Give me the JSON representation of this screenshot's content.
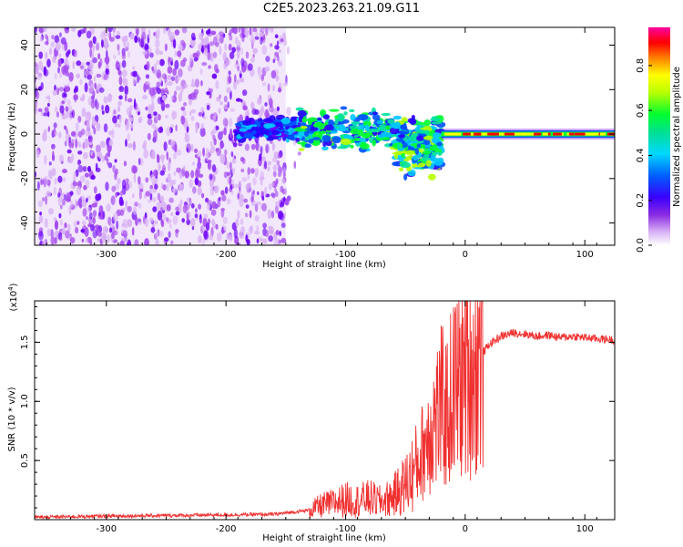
{
  "title": "C2E5.2023.263.21.09.G11",
  "colors": {
    "axis": "#000000",
    "snr_line": "#f03030",
    "colormap": [
      "#f1e4fb",
      "#d9b3f5",
      "#a64df0",
      "#6a00ff",
      "#2a00ff",
      "#0050ff",
      "#00c8ff",
      "#00e0a0",
      "#00ff30",
      "#b8ff00",
      "#ffff00",
      "#ff8000",
      "#ff0000",
      "#ff00a0"
    ]
  },
  "chart_data": [
    {
      "type": "heatmap",
      "xlabel": "Height of straight line (km)",
      "ylabel": "Frequency (Hz)",
      "xlim": [
        -360,
        125
      ],
      "ylim": [
        -50,
        48
      ],
      "x_ticks": [
        -300,
        -200,
        -100,
        0,
        100
      ],
      "y_ticks": [
        -40,
        -20,
        0,
        20,
        40
      ],
      "colorbar": {
        "label": "Normalized spectral amplitude",
        "range": [
          0.0,
          0.97
        ],
        "ticks": [
          0.0,
          0.2,
          0.4,
          0.6,
          0.8
        ],
        "tick_labels": [
          "0.0",
          "0.2",
          "0.4",
          "0.6",
          "0.8"
        ]
      },
      "regions": [
        {
          "x": [
            -360,
            -150
          ],
          "freq": [
            -50,
            48
          ],
          "amplitude": 0.15,
          "pattern": "noise"
        },
        {
          "x": [
            -190,
            -140
          ],
          "freq": [
            -3,
            8
          ],
          "amplitude": 0.35,
          "pattern": "signal"
        },
        {
          "x": [
            -140,
            -60
          ],
          "freq": [
            -8,
            12
          ],
          "amplitude": 0.5,
          "pattern": "signal"
        },
        {
          "x": [
            -60,
            -20
          ],
          "freq": [
            -20,
            10
          ],
          "amplitude": 0.55,
          "pattern": "signal"
        },
        {
          "x": [
            -20,
            125
          ],
          "freq": [
            -2,
            2
          ],
          "amplitude": 0.95,
          "pattern": "band"
        }
      ]
    },
    {
      "type": "line",
      "xlabel": "Height of straight line (km)",
      "ylabel": "SNR (10 * v/v)",
      "y_multiplier": "(x10",
      "y_multiplier_exp": "4",
      "y_multiplier_close": ")",
      "xlim": [
        -360,
        125
      ],
      "ylim": [
        0,
        18500
      ],
      "x_ticks": [
        -300,
        -200,
        -100,
        0,
        100
      ],
      "y_ticks": [
        5000,
        10000,
        15000
      ],
      "y_tick_labels": [
        "0.5",
        "1.0",
        "1.5"
      ],
      "series": [
        {
          "x": [
            -360,
            -300,
            -250,
            -200,
            -160,
            -130,
            -120,
            -110,
            -100,
            -90,
            -80,
            -70,
            -60,
            -50,
            -40,
            -35,
            -30,
            -25,
            -20,
            -15,
            -10,
            -5,
            0,
            5,
            10,
            20,
            30,
            40,
            50,
            60,
            70,
            80,
            90,
            100,
            110,
            125
          ],
          "y": [
            200,
            300,
            350,
            400,
            450,
            800,
            1200,
            1400,
            1700,
            1600,
            1800,
            1500,
            2000,
            3000,
            4500,
            6000,
            7500,
            8500,
            9500,
            9000,
            11000,
            11500,
            12500,
            13000,
            13500,
            14800,
            15500,
            15800,
            15700,
            15500,
            15600,
            15400,
            15500,
            15400,
            15300,
            15200
          ]
        }
      ]
    }
  ]
}
